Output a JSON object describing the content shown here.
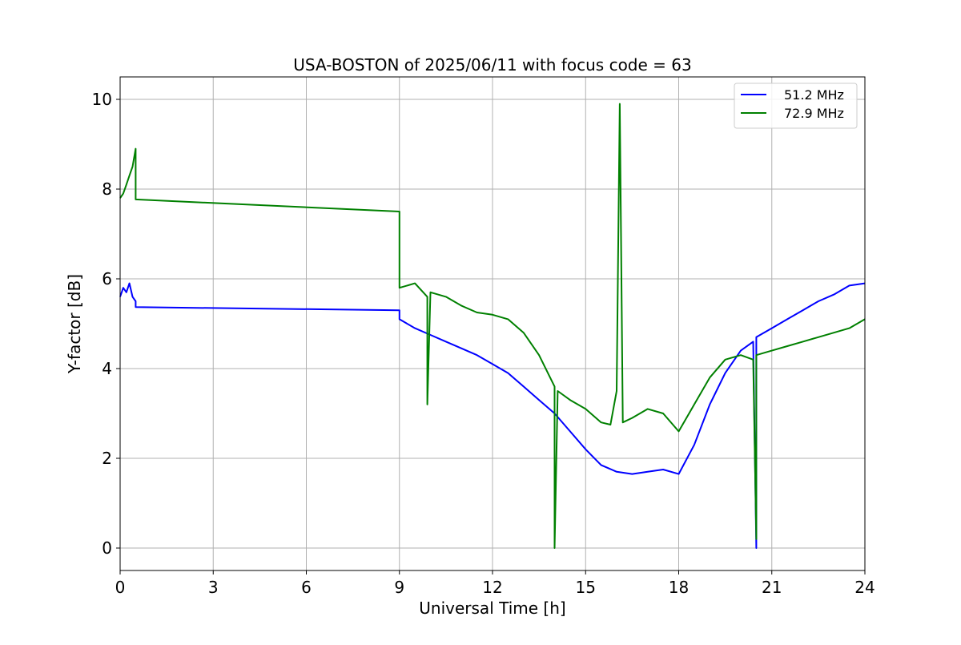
{
  "chart_data": {
    "type": "line",
    "title": "USA-BOSTON of 2025/06/11 with focus code = 63",
    "xlabel": "Universal Time [h]",
    "ylabel": "Y-factor [dB]",
    "xlim": [
      0,
      24
    ],
    "ylim": [
      -0.5,
      10.5
    ],
    "xticks": [
      0,
      3,
      6,
      9,
      12,
      15,
      18,
      21,
      24
    ],
    "yticks": [
      0,
      2,
      4,
      6,
      8,
      10
    ],
    "grid": true,
    "legend_position": "top-right",
    "series": [
      {
        "name": "51.2 MHz",
        "color": "#0000ff",
        "x": [
          0.0,
          0.1,
          0.2,
          0.3,
          0.4,
          0.5,
          0.5,
          9.0,
          9.0,
          9.5,
          10.0,
          10.5,
          11.0,
          11.5,
          12.0,
          12.5,
          13.0,
          13.5,
          14.0,
          14.5,
          15.0,
          15.5,
          16.0,
          16.5,
          17.0,
          17.5,
          18.0,
          18.5,
          19.0,
          19.5,
          20.0,
          20.4,
          20.5,
          20.5,
          21.0,
          21.5,
          22.0,
          22.5,
          23.0,
          23.5,
          24.0
        ],
        "y": [
          5.6,
          5.8,
          5.7,
          5.9,
          5.6,
          5.5,
          5.37,
          5.3,
          5.1,
          4.9,
          4.75,
          4.6,
          4.45,
          4.3,
          4.1,
          3.9,
          3.6,
          3.3,
          3.0,
          2.6,
          2.2,
          1.85,
          1.7,
          1.65,
          1.7,
          1.75,
          1.65,
          2.3,
          3.2,
          3.9,
          4.4,
          4.6,
          0.0,
          4.7,
          4.9,
          5.1,
          5.3,
          5.5,
          5.65,
          5.85,
          5.9
        ]
      },
      {
        "name": "72.9 MHz",
        "color": "#008000",
        "x": [
          0.0,
          0.1,
          0.2,
          0.3,
          0.4,
          0.5,
          0.5,
          9.0,
          9.0,
          9.5,
          9.9,
          9.9,
          10.0,
          10.5,
          11.0,
          11.5,
          12.0,
          12.5,
          13.0,
          13.5,
          14.0,
          14.0,
          14.1,
          14.5,
          15.0,
          15.5,
          15.8,
          16.0,
          16.1,
          16.2,
          16.5,
          17.0,
          17.5,
          18.0,
          18.5,
          19.0,
          19.5,
          20.0,
          20.4,
          20.5,
          20.5,
          21.0,
          21.5,
          22.0,
          22.5,
          23.0,
          23.5,
          24.0
        ],
        "y": [
          7.8,
          7.9,
          8.1,
          8.3,
          8.5,
          8.9,
          7.77,
          7.5,
          5.8,
          5.9,
          5.6,
          3.2,
          5.7,
          5.6,
          5.4,
          5.25,
          5.2,
          5.1,
          4.8,
          4.3,
          3.6,
          0.0,
          3.5,
          3.3,
          3.1,
          2.8,
          2.75,
          3.5,
          9.9,
          2.8,
          2.9,
          3.1,
          3.0,
          2.6,
          3.2,
          3.8,
          4.2,
          4.3,
          4.2,
          0.2,
          4.3,
          4.4,
          4.5,
          4.6,
          4.7,
          4.8,
          4.9,
          5.1
        ]
      }
    ]
  }
}
